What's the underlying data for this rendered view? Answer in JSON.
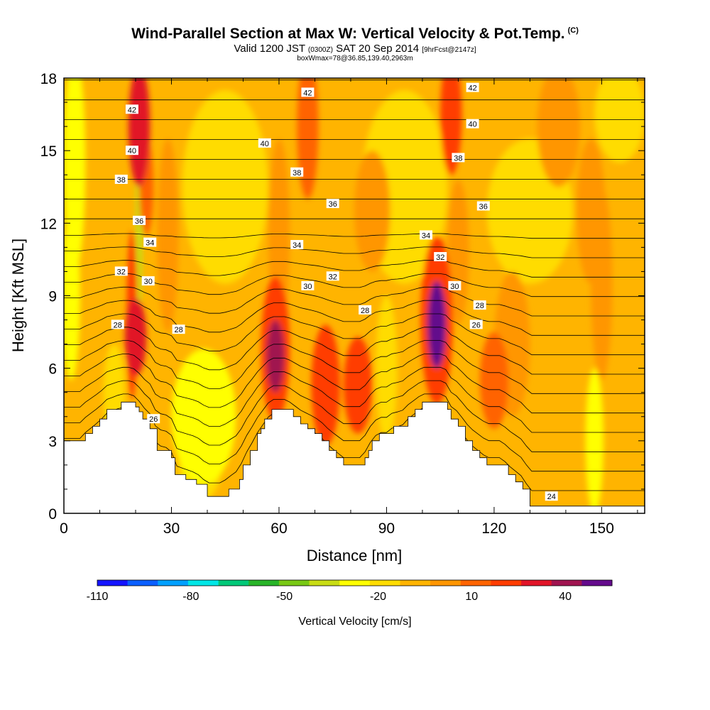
{
  "header": {
    "title": "Wind-Parallel Section at Max W: Vertical Velocity & Pot.Temp.",
    "title_note": "(C)",
    "valid_prefix": "Valid 1200 JST",
    "valid_utc": "(0300Z)",
    "valid_date": "SAT 20 Sep 2014",
    "forecast": "[9hrFcst@2147z]",
    "box_info": "boxWmax=78@36.85,139.40,2963m"
  },
  "colors": {
    "terrain": "#ffffff",
    "scale": [
      "#1414ff",
      "#0a5fff",
      "#00a0ff",
      "#00e6e6",
      "#00c878",
      "#28b428",
      "#78c814",
      "#c8dc14",
      "#ffff00",
      "#ffdc00",
      "#ffb400",
      "#ff9600",
      "#ff6400",
      "#ff3c00",
      "#e11428",
      "#a01450",
      "#640a8c"
    ],
    "background_fill": "#ffb400"
  },
  "chart_data": {
    "type": "heatmap",
    "xlabel": "Distance [nm]",
    "ylabel": "Height [Kft MSL]",
    "xlim": [
      0,
      162
    ],
    "ylim": [
      0,
      18
    ],
    "xticks": [
      0,
      30,
      60,
      90,
      120,
      150
    ],
    "yticks": [
      0,
      3,
      6,
      9,
      12,
      15,
      18
    ],
    "colorbar": {
      "label": "Vertical Velocity [cm/s]",
      "tick_labels": [
        "-110",
        "-80",
        "-50",
        "-20",
        "10",
        "40"
      ],
      "tick_values": [
        -110,
        -80,
        -50,
        -20,
        10,
        40
      ],
      "min": -110,
      "max": 55,
      "step": 10
    },
    "terrain": [
      [
        0,
        3.0
      ],
      [
        5,
        3.0
      ],
      [
        6,
        3.3
      ],
      [
        8,
        3.6
      ],
      [
        10,
        3.9
      ],
      [
        12,
        4.3
      ],
      [
        16,
        4.6
      ],
      [
        19,
        4.6
      ],
      [
        20,
        4.4
      ],
      [
        21,
        4.2
      ],
      [
        22,
        3.9
      ],
      [
        24,
        3.5
      ],
      [
        26,
        2.6
      ],
      [
        28,
        2.6
      ],
      [
        30,
        2.3
      ],
      [
        31,
        1.6
      ],
      [
        34,
        1.4
      ],
      [
        37,
        1.2
      ],
      [
        40,
        0.7
      ],
      [
        44,
        0.7
      ],
      [
        46,
        1.0
      ],
      [
        49,
        1.4
      ],
      [
        50,
        2.0
      ],
      [
        52,
        2.6
      ],
      [
        54,
        3.3
      ],
      [
        55,
        3.5
      ],
      [
        56,
        3.9
      ],
      [
        58,
        4.3
      ],
      [
        62,
        4.3
      ],
      [
        64,
        4.0
      ],
      [
        66,
        3.7
      ],
      [
        68,
        3.5
      ],
      [
        70,
        3.3
      ],
      [
        72,
        3.0
      ],
      [
        74,
        2.6
      ],
      [
        76,
        2.3
      ],
      [
        78,
        2.0
      ],
      [
        83,
        2.0
      ],
      [
        84,
        2.3
      ],
      [
        85,
        2.6
      ],
      [
        86,
        3.0
      ],
      [
        88,
        3.3
      ],
      [
        90,
        3.3
      ],
      [
        92,
        3.6
      ],
      [
        94,
        3.6
      ],
      [
        96,
        4.0
      ],
      [
        98,
        4.3
      ],
      [
        100,
        4.6
      ],
      [
        106,
        4.6
      ],
      [
        107,
        4.3
      ],
      [
        108,
        3.9
      ],
      [
        110,
        3.6
      ],
      [
        112,
        3.0
      ],
      [
        114,
        2.6
      ],
      [
        116,
        2.3
      ],
      [
        118,
        2.0
      ],
      [
        122,
        2.0
      ],
      [
        124,
        1.6
      ],
      [
        126,
        1.3
      ],
      [
        128,
        1.0
      ],
      [
        130,
        0.3
      ],
      [
        162,
        0.3
      ]
    ],
    "updraft_cores": [
      {
        "x": 20,
        "y": 7.3,
        "rx": 3.0,
        "ry": 1.6,
        "w": 35
      },
      {
        "x": 19,
        "y": 8.2,
        "rx": 1.5,
        "ry": 3.5,
        "w": 25
      },
      {
        "x": 21,
        "y": 16.0,
        "rx": 3.0,
        "ry": 2.5,
        "w": 30
      },
      {
        "x": 23,
        "y": 13.5,
        "rx": 2.0,
        "ry": 2.0,
        "w": 15
      },
      {
        "x": 29,
        "y": 11.5,
        "rx": 3.0,
        "ry": 4.0,
        "w": 5
      },
      {
        "x": 59,
        "y": 6.5,
        "rx": 2.5,
        "ry": 1.5,
        "w": 45
      },
      {
        "x": 59,
        "y": 6.8,
        "rx": 4.0,
        "ry": 3.0,
        "w": 20
      },
      {
        "x": 73,
        "y": 5.3,
        "rx": 4.0,
        "ry": 2.5,
        "w": 25
      },
      {
        "x": 82,
        "y": 5.3,
        "rx": 4.0,
        "ry": 2.0,
        "w": 20
      },
      {
        "x": 104,
        "y": 7.8,
        "rx": 2.5,
        "ry": 1.8,
        "w": 55
      },
      {
        "x": 104,
        "y": 8.0,
        "rx": 4.5,
        "ry": 3.5,
        "w": 25
      },
      {
        "x": 108,
        "y": 16.5,
        "rx": 3.0,
        "ry": 2.5,
        "w": 20
      },
      {
        "x": 68,
        "y": 16.0,
        "rx": 3.0,
        "ry": 3.0,
        "w": 15
      },
      {
        "x": 120,
        "y": 5.5,
        "rx": 4.0,
        "ry": 2.0,
        "w": 15
      },
      {
        "x": 125,
        "y": 7.0,
        "rx": 5.0,
        "ry": 3.0,
        "w": 5
      },
      {
        "x": 60,
        "y": 11.5,
        "rx": 3.0,
        "ry": 4.0,
        "w": 5
      },
      {
        "x": 110,
        "y": 10.8,
        "rx": 3.0,
        "ry": 3.0,
        "w": 5
      },
      {
        "x": 150,
        "y": 9.5,
        "rx": 3.0,
        "ry": 4.0,
        "w": 5
      },
      {
        "x": 147,
        "y": 12.5,
        "rx": 4.0,
        "ry": 3.0,
        "w": 5
      },
      {
        "x": 86,
        "y": 12.5,
        "rx": 5.0,
        "ry": 2.5,
        "w": 5
      },
      {
        "x": 138,
        "y": 16.0,
        "rx": 6.0,
        "ry": 2.5,
        "w": 5
      }
    ],
    "downdraft_zones": [
      {
        "x": 39,
        "y": 4.0,
        "rx": 9.0,
        "ry": 2.8,
        "w": -25
      },
      {
        "x": 38,
        "y": 2.0,
        "rx": 6.0,
        "ry": 1.5,
        "w": -15
      },
      {
        "x": 3,
        "y": 14.5,
        "rx": 3.0,
        "ry": 4.5,
        "w": -30
      },
      {
        "x": 2,
        "y": 9.0,
        "rx": 2.5,
        "ry": 3.5,
        "w": -25
      },
      {
        "x": 21,
        "y": 13.0,
        "rx": 1.0,
        "ry": 5.0,
        "w": -35
      },
      {
        "x": 90,
        "y": 6.0,
        "rx": 3.0,
        "ry": 3.0,
        "w": -20
      },
      {
        "x": 148,
        "y": 3.0,
        "rx": 2.5,
        "ry": 3.0,
        "w": -25
      },
      {
        "x": 14,
        "y": 5.0,
        "rx": 3.0,
        "ry": 2.0,
        "w": -15
      },
      {
        "x": 95,
        "y": 13.5,
        "rx": 12.0,
        "ry": 4.0,
        "w": -15
      },
      {
        "x": 45,
        "y": 13.5,
        "rx": 12.0,
        "ry": 4.0,
        "w": -15
      },
      {
        "x": 130,
        "y": 12.5,
        "rx": 12.0,
        "ry": 3.0,
        "w": -15
      },
      {
        "x": 155,
        "y": 16.5,
        "rx": 7.0,
        "ry": 2.0,
        "w": -15
      }
    ],
    "theta_contours": {
      "label_values": [
        24,
        26,
        28,
        30,
        32,
        34,
        36,
        38,
        40,
        42
      ],
      "labels": [
        {
          "text": "42",
          "x": 19,
          "y": 16.7
        },
        {
          "text": "40",
          "x": 19,
          "y": 15.0
        },
        {
          "text": "38",
          "x": 16,
          "y": 13.8
        },
        {
          "text": "36",
          "x": 21,
          "y": 12.1
        },
        {
          "text": "34",
          "x": 24,
          "y": 11.2
        },
        {
          "text": "32",
          "x": 16,
          "y": 10.0
        },
        {
          "text": "30",
          "x": 23.5,
          "y": 9.6
        },
        {
          "text": "28",
          "x": 15,
          "y": 7.8
        },
        {
          "text": "28",
          "x": 32,
          "y": 7.6
        },
        {
          "text": "26",
          "x": 25,
          "y": 3.9
        },
        {
          "text": "42",
          "x": 68,
          "y": 17.4
        },
        {
          "text": "40",
          "x": 56,
          "y": 15.3
        },
        {
          "text": "38",
          "x": 65,
          "y": 14.1
        },
        {
          "text": "36",
          "x": 75,
          "y": 12.8
        },
        {
          "text": "34",
          "x": 65,
          "y": 11.1
        },
        {
          "text": "32",
          "x": 75,
          "y": 9.8
        },
        {
          "text": "30",
          "x": 68,
          "y": 9.4
        },
        {
          "text": "28",
          "x": 84,
          "y": 8.4
        },
        {
          "text": "42",
          "x": 114,
          "y": 17.6
        },
        {
          "text": "40",
          "x": 114,
          "y": 16.1
        },
        {
          "text": "38",
          "x": 110,
          "y": 14.7
        },
        {
          "text": "36",
          "x": 117,
          "y": 12.7
        },
        {
          "text": "34",
          "x": 101,
          "y": 11.5
        },
        {
          "text": "32",
          "x": 105,
          "y": 10.6
        },
        {
          "text": "30",
          "x": 109,
          "y": 9.4
        },
        {
          "text": "28",
          "x": 116,
          "y": 8.6
        },
        {
          "text": "26",
          "x": 115,
          "y": 7.8
        },
        {
          "text": "24",
          "x": 136,
          "y": 0.7
        }
      ]
    }
  }
}
